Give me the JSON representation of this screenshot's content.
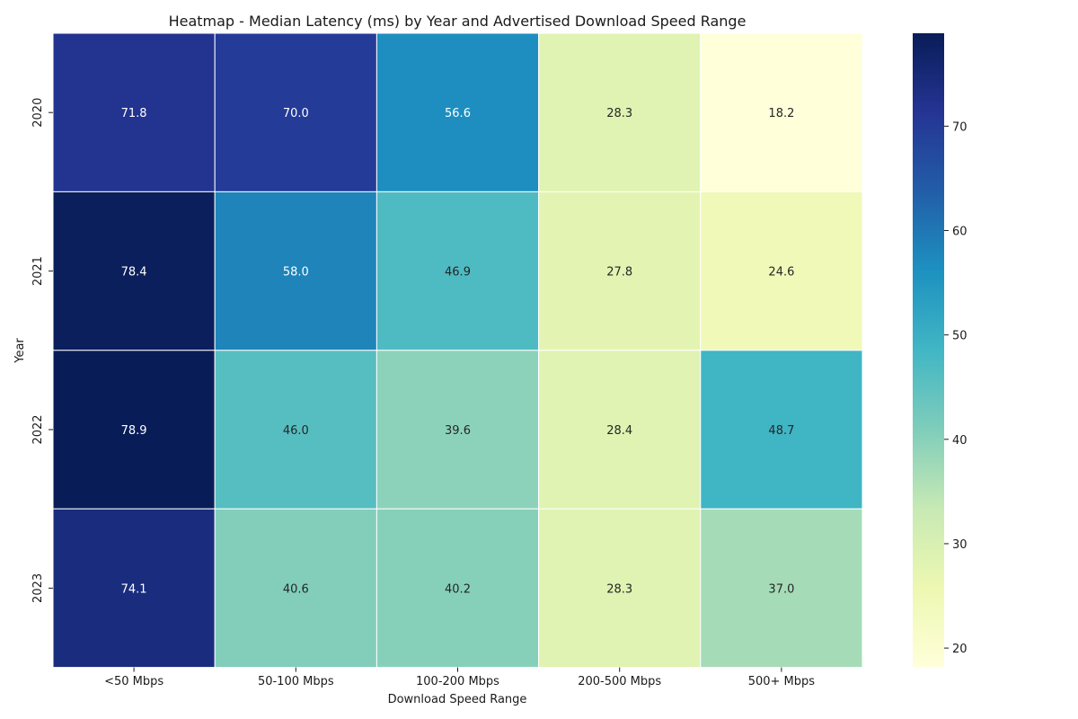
{
  "chart_data": {
    "type": "heatmap",
    "title": "Heatmap - Median Latency (ms) by Year and Advertised Download Speed Range",
    "xlabel": "Download Speed Range",
    "ylabel": "Year",
    "x_categories": [
      "<50 Mbps",
      "50-100 Mbps",
      "100-200 Mbps",
      "200-500 Mbps",
      "500+ Mbps"
    ],
    "y_categories": [
      "2020",
      "2021",
      "2022",
      "2023"
    ],
    "values": [
      [
        71.8,
        70.0,
        56.6,
        28.3,
        18.2
      ],
      [
        78.4,
        58.0,
        46.9,
        27.8,
        24.6
      ],
      [
        78.9,
        46.0,
        39.6,
        28.4,
        48.7
      ],
      [
        74.1,
        40.6,
        40.2,
        28.3,
        37.0
      ]
    ],
    "value_labels": [
      [
        "71.8",
        "70.0",
        "56.6",
        "28.3",
        "18.2"
      ],
      [
        "78.4",
        "58.0",
        "46.9",
        "27.8",
        "24.6"
      ],
      [
        "78.9",
        "46.0",
        "39.6",
        "28.4",
        "48.7"
      ],
      [
        "74.1",
        "40.6",
        "40.2",
        "28.3",
        "37.0"
      ]
    ],
    "colormap": "YlGnBu",
    "colorbar_range": [
      18.2,
      78.9
    ],
    "colorbar_ticks": [
      "20",
      "30",
      "40",
      "50",
      "60",
      "70"
    ],
    "grid": false
  }
}
